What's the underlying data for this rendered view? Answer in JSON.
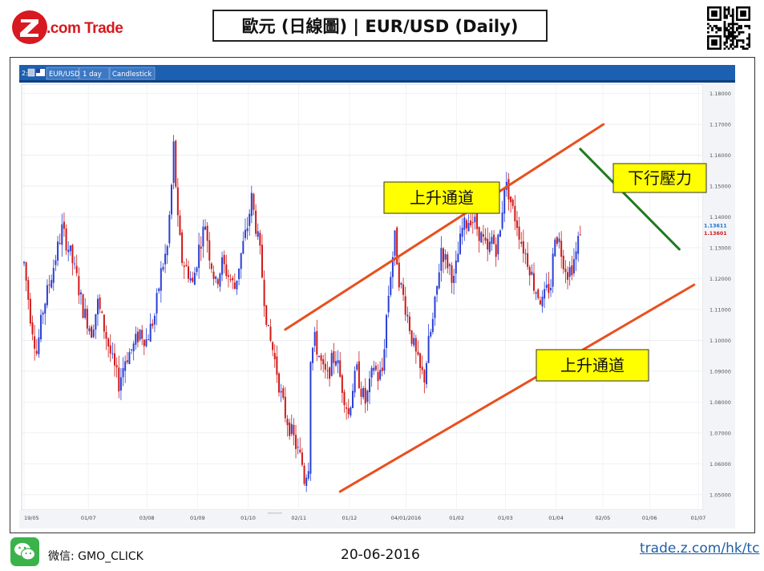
{
  "header": {
    "logo_text_1": "Z",
    "logo_text_2": ".com Trade",
    "title": "歐元 (日線圖) | EUR/USD  (Daily)"
  },
  "toolbar": {
    "window_number": "2:",
    "symbol": "EUR/USD",
    "timeframe": "1 day",
    "chart_style": "Candlestick"
  },
  "chart_data": {
    "type": "candlestick",
    "title": "EUR/USD",
    "ylim": [
      1.045,
      1.183
    ],
    "y_ticks": [
      "1.18000",
      "1.17000",
      "1.16000",
      "1.15000",
      "1.14000",
      "1.13000",
      "1.12000",
      "1.11000",
      "1.10000",
      "1.09000",
      "1.08000",
      "1.07000",
      "1.06000",
      "1.05000"
    ],
    "x_ticks": [
      "19/05",
      "01/07",
      "03/08",
      "01/09",
      "01/10",
      "02/11",
      "01/12",
      "04/01/2016",
      "01/02",
      "01/03",
      "01/04",
      "02/05",
      "01/06",
      "01/07"
    ],
    "price_levels": [
      {
        "label": "1.13611",
        "value": 1.13611,
        "color": "#1a6fc9"
      },
      {
        "label": "1.13601",
        "value": 1.13601,
        "color": "#d01818"
      }
    ],
    "anchors": [
      [
        0,
        1.125
      ],
      [
        3,
        1.108
      ],
      [
        6,
        1.096
      ],
      [
        9,
        1.11
      ],
      [
        14,
        1.124
      ],
      [
        18,
        1.136
      ],
      [
        22,
        1.128
      ],
      [
        25,
        1.12
      ],
      [
        28,
        1.11
      ],
      [
        32,
        1.103
      ],
      [
        35,
        1.112
      ],
      [
        38,
        1.104
      ],
      [
        42,
        1.093
      ],
      [
        45,
        1.086
      ],
      [
        48,
        1.094
      ],
      [
        52,
        1.098
      ],
      [
        55,
        1.103
      ],
      [
        58,
        1.1
      ],
      [
        62,
        1.108
      ],
      [
        65,
        1.122
      ],
      [
        68,
        1.13
      ],
      [
        70,
        1.15
      ],
      [
        71,
        1.163
      ],
      [
        73,
        1.138
      ],
      [
        75,
        1.126
      ],
      [
        78,
        1.122
      ],
      [
        80,
        1.118
      ],
      [
        83,
        1.13
      ],
      [
        86,
        1.138
      ],
      [
        88,
        1.128
      ],
      [
        91,
        1.118
      ],
      [
        94,
        1.125
      ],
      [
        97,
        1.121
      ],
      [
        100,
        1.117
      ],
      [
        103,
        1.128
      ],
      [
        106,
        1.137
      ],
      [
        108,
        1.146
      ],
      [
        110,
        1.137
      ],
      [
        112,
        1.128
      ],
      [
        114,
        1.114
      ],
      [
        116,
        1.102
      ],
      [
        118,
        1.097
      ],
      [
        120,
        1.09
      ],
      [
        122,
        1.082
      ],
      [
        124,
        1.076
      ],
      [
        126,
        1.072
      ],
      [
        128,
        1.068
      ],
      [
        130,
        1.064
      ],
      [
        132,
        1.06
      ],
      [
        133,
        1.055
      ],
      [
        135,
        1.06
      ],
      [
        136,
        1.095
      ],
      [
        138,
        1.1
      ],
      [
        140,
        1.095
      ],
      [
        142,
        1.09
      ],
      [
        144,
        1.088
      ],
      [
        146,
        1.093
      ],
      [
        148,
        1.095
      ],
      [
        150,
        1.088
      ],
      [
        152,
        1.082
      ],
      [
        154,
        1.076
      ],
      [
        156,
        1.085
      ],
      [
        158,
        1.09
      ],
      [
        160,
        1.084
      ],
      [
        162,
        1.08
      ],
      [
        164,
        1.085
      ],
      [
        166,
        1.092
      ],
      [
        168,
        1.088
      ],
      [
        170,
        1.09
      ],
      [
        172,
        1.108
      ],
      [
        174,
        1.122
      ],
      [
        176,
        1.133
      ],
      [
        178,
        1.12
      ],
      [
        180,
        1.114
      ],
      [
        182,
        1.108
      ],
      [
        184,
        1.101
      ],
      [
        186,
        1.095
      ],
      [
        188,
        1.09
      ],
      [
        190,
        1.088
      ],
      [
        192,
        1.099
      ],
      [
        194,
        1.106
      ],
      [
        196,
        1.117
      ],
      [
        198,
        1.13
      ],
      [
        200,
        1.126
      ],
      [
        202,
        1.124
      ],
      [
        204,
        1.119
      ],
      [
        206,
        1.128
      ],
      [
        208,
        1.136
      ],
      [
        210,
        1.138
      ],
      [
        212,
        1.14
      ],
      [
        214,
        1.138
      ],
      [
        216,
        1.135
      ],
      [
        218,
        1.132
      ],
      [
        220,
        1.128
      ],
      [
        222,
        1.133
      ],
      [
        224,
        1.13
      ],
      [
        226,
        1.135
      ],
      [
        228,
        1.151
      ],
      [
        230,
        1.148
      ],
      [
        232,
        1.142
      ],
      [
        234,
        1.138
      ],
      [
        236,
        1.132
      ],
      [
        238,
        1.128
      ],
      [
        240,
        1.124
      ],
      [
        242,
        1.118
      ],
      [
        244,
        1.115
      ],
      [
        246,
        1.112
      ],
      [
        248,
        1.116
      ],
      [
        250,
        1.118
      ],
      [
        252,
        1.135
      ],
      [
        254,
        1.132
      ],
      [
        256,
        1.126
      ],
      [
        258,
        1.122
      ],
      [
        260,
        1.124
      ],
      [
        262,
        1.128
      ],
      [
        264,
        1.136
      ]
    ],
    "annotations": [
      {
        "text": "上升通道",
        "kind": "label"
      },
      {
        "text": "上升通道",
        "kind": "label"
      },
      {
        "text": "下行壓力",
        "kind": "label"
      }
    ],
    "trendlines": [
      {
        "name": "upper-channel",
        "color": "#e8501e",
        "from": [
          124,
          1.1035
        ],
        "to": [
          275,
          1.17
        ]
      },
      {
        "name": "lower-channel",
        "color": "#e8501e",
        "from": [
          150,
          1.051
        ],
        "to": [
          318,
          1.118
        ]
      },
      {
        "name": "resistance",
        "color": "#1f7a1f",
        "from": [
          264,
          1.162
        ],
        "to": [
          311,
          1.1295
        ]
      }
    ],
    "colors": {
      "up": "#2a3fd6",
      "down": "#d01818",
      "panel_header": "#1d5fb0",
      "label_bg": "#ffff00"
    }
  },
  "footer": {
    "wechat_prefix": "微信",
    "wechat_id": ": GMO_CLICK",
    "date": "20-06-2016",
    "url": "trade.z.com/hk/tc"
  }
}
